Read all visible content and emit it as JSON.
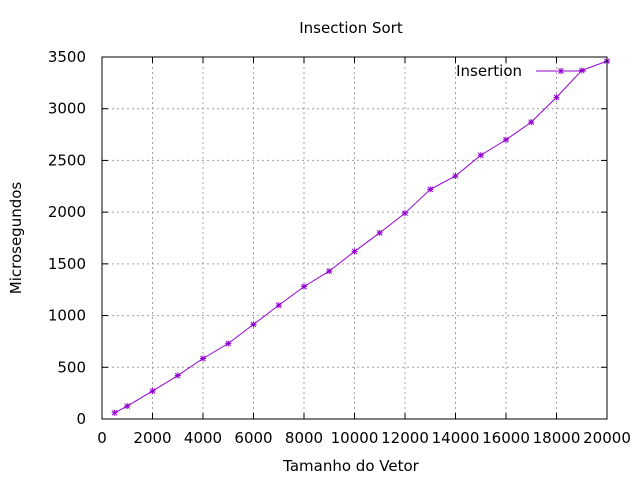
{
  "chart_data": {
    "type": "line",
    "title": "Insection Sort",
    "xlabel": "Tamanho do Vetor",
    "ylabel": "Microsegundos",
    "xlim": [
      0,
      20000
    ],
    "ylim": [
      0,
      3500
    ],
    "x_ticks": [
      "0",
      "2000",
      "4000",
      "6000",
      "8000",
      "10000",
      "12000",
      "14000",
      "16000",
      "18000",
      "20000"
    ],
    "y_ticks": [
      "0",
      "500",
      "1000",
      "1500",
      "2000",
      "2500",
      "3000",
      "3500"
    ],
    "grid": true,
    "legend_position": "top-right",
    "series": [
      {
        "name": "Insertion",
        "color": "#9400d3",
        "marker": "plus-cross",
        "x": [
          500,
          1000,
          2000,
          3000,
          4000,
          5000,
          6000,
          7000,
          8000,
          9000,
          10000,
          11000,
          12000,
          13000,
          14000,
          15000,
          16000,
          17000,
          18000,
          19000,
          20000
        ],
        "y": [
          60,
          125,
          270,
          420,
          585,
          730,
          915,
          1100,
          1280,
          1430,
          1620,
          1800,
          1990,
          2220,
          2350,
          2550,
          2700,
          2870,
          3110,
          3370,
          3460
        ]
      }
    ]
  }
}
